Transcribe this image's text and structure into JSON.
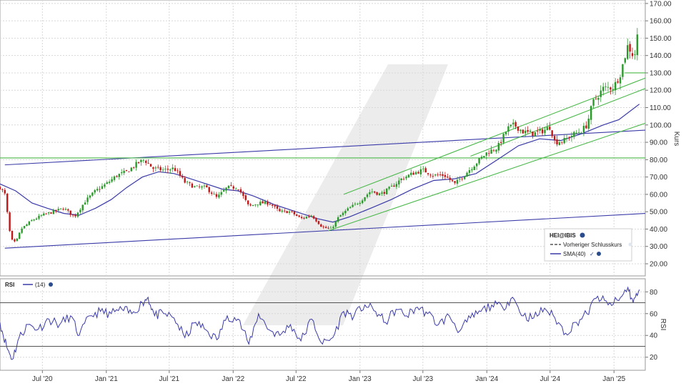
{
  "chart_data": [
    {
      "type": "candlestick",
      "instrument": "HEI@IBIS",
      "ylabel": "Kurs",
      "ylim": [
        13,
        172
      ],
      "y_ticks": [
        20,
        30,
        40,
        50,
        60,
        70,
        80,
        90,
        100,
        110,
        120,
        130,
        140,
        150,
        160,
        170
      ],
      "y_tick_labels": [
        "20.00",
        "30.00",
        "40.00",
        "50.00",
        "60.00",
        "70.00",
        "80.00",
        "90.00",
        "100.00",
        "110.00",
        "120.00",
        "130.00",
        "140.00",
        "150.00",
        "160.00",
        "170.00"
      ],
      "x_range": [
        "2020-03-01",
        "2025-04-01"
      ],
      "x_tick_dates": [
        "2020-07-01",
        "2021-01-01",
        "2021-07-01",
        "2022-01-01",
        "2022-07-01",
        "2023-01-01",
        "2023-07-01",
        "2024-01-01",
        "2024-07-01",
        "2025-01-01"
      ],
      "x_tick_labels": [
        "Jul '20",
        "Jan '21",
        "Jul '21",
        "Jan '22",
        "Jul '22",
        "Jan '23",
        "Jul '23",
        "Jan '24",
        "Jul '24",
        "Jan '25"
      ],
      "grid": true,
      "legend": {
        "placement": "bottom-right",
        "title": "HEI@IBIS",
        "items": [
          {
            "label": "Vorheriger Schlusskurs",
            "style": "dashed",
            "color": "#333333"
          },
          {
            "label": "SMA(40)",
            "style": "solid",
            "color": "#3a3aa8"
          }
        ]
      },
      "close_path": [
        [
          "2020-03-01",
          64
        ],
        [
          "2020-03-15",
          60
        ],
        [
          "2020-04-01",
          34
        ],
        [
          "2020-04-15",
          32
        ],
        [
          "2020-05-01",
          40
        ],
        [
          "2020-06-01",
          45
        ],
        [
          "2020-07-01",
          48
        ],
        [
          "2020-08-01",
          50
        ],
        [
          "2020-09-01",
          52
        ],
        [
          "2020-10-01",
          47
        ],
        [
          "2020-11-01",
          56
        ],
        [
          "2020-12-01",
          62
        ],
        [
          "2021-01-01",
          66
        ],
        [
          "2021-02-01",
          71
        ],
        [
          "2021-03-01",
          73
        ],
        [
          "2021-04-01",
          78
        ],
        [
          "2021-04-20",
          80
        ],
        [
          "2021-05-15",
          75
        ],
        [
          "2021-06-15",
          74
        ],
        [
          "2021-07-15",
          75
        ],
        [
          "2021-08-15",
          67
        ],
        [
          "2021-09-15",
          64
        ],
        [
          "2021-10-15",
          64
        ],
        [
          "2021-11-15",
          58
        ],
        [
          "2021-12-15",
          64
        ],
        [
          "2022-01-15",
          64
        ],
        [
          "2022-02-15",
          53
        ],
        [
          "2022-03-15",
          55
        ],
        [
          "2022-04-15",
          55
        ],
        [
          "2022-05-15",
          50
        ],
        [
          "2022-06-15",
          50
        ],
        [
          "2022-07-15",
          46
        ],
        [
          "2022-08-15",
          48
        ],
        [
          "2022-09-15",
          41
        ],
        [
          "2022-10-10",
          40
        ],
        [
          "2022-11-01",
          47
        ],
        [
          "2022-12-01",
          52
        ],
        [
          "2023-01-01",
          56
        ],
        [
          "2023-02-01",
          62
        ],
        [
          "2023-03-01",
          60
        ],
        [
          "2023-04-01",
          64
        ],
        [
          "2023-05-01",
          69
        ],
        [
          "2023-06-01",
          72
        ],
        [
          "2023-07-01",
          74
        ],
        [
          "2023-08-01",
          71
        ],
        [
          "2023-09-01",
          71
        ],
        [
          "2023-10-01",
          66
        ],
        [
          "2023-11-01",
          72
        ],
        [
          "2023-12-01",
          78
        ],
        [
          "2024-01-01",
          84
        ],
        [
          "2024-02-01",
          87
        ],
        [
          "2024-03-01",
          98
        ],
        [
          "2024-03-20",
          100
        ],
        [
          "2024-04-15",
          96
        ],
        [
          "2024-05-15",
          95
        ],
        [
          "2024-06-15",
          97
        ],
        [
          "2024-07-01",
          99
        ],
        [
          "2024-07-15",
          90
        ],
        [
          "2024-08-10",
          91
        ],
        [
          "2024-09-01",
          94
        ],
        [
          "2024-10-01",
          97
        ],
        [
          "2024-10-15",
          100
        ],
        [
          "2024-11-01",
          113
        ],
        [
          "2024-12-01",
          121
        ],
        [
          "2025-01-01",
          122
        ],
        [
          "2025-01-20",
          130
        ],
        [
          "2025-02-10",
          146
        ],
        [
          "2025-02-25",
          140
        ],
        [
          "2025-03-05",
          142
        ],
        [
          "2025-03-15",
          165
        ]
      ],
      "series": [
        {
          "name": "SMA(40)",
          "color": "#3a3aa8",
          "values": [
            [
              "2020-03-01",
              66
            ],
            [
              "2020-04-15",
              62
            ],
            [
              "2020-06-01",
              55
            ],
            [
              "2020-07-15",
              52
            ],
            [
              "2020-09-01",
              49
            ],
            [
              "2020-10-15",
              48
            ],
            [
              "2020-12-01",
              52
            ],
            [
              "2021-01-15",
              57
            ],
            [
              "2021-03-01",
              64
            ],
            [
              "2021-04-15",
              70
            ],
            [
              "2021-06-01",
              73
            ],
            [
              "2021-07-15",
              72
            ],
            [
              "2021-08-15",
              70
            ],
            [
              "2021-10-01",
              67
            ],
            [
              "2021-12-01",
              63
            ],
            [
              "2022-01-15",
              62
            ],
            [
              "2022-03-01",
              59
            ],
            [
              "2022-05-01",
              54
            ],
            [
              "2022-07-01",
              50
            ],
            [
              "2022-09-01",
              46
            ],
            [
              "2022-10-15",
              44
            ],
            [
              "2022-12-01",
              47
            ],
            [
              "2023-02-01",
              52
            ],
            [
              "2023-04-01",
              57
            ],
            [
              "2023-06-01",
              63
            ],
            [
              "2023-08-01",
              68
            ],
            [
              "2023-10-01",
              69
            ],
            [
              "2023-12-01",
              72
            ],
            [
              "2024-02-01",
              80
            ],
            [
              "2024-04-01",
              88
            ],
            [
              "2024-06-01",
              92
            ],
            [
              "2024-08-01",
              91
            ],
            [
              "2024-10-01",
              95
            ],
            [
              "2024-12-01",
              100
            ],
            [
              "2025-01-15",
              103
            ],
            [
              "2025-03-15",
              112
            ]
          ]
        }
      ],
      "trendlines": [
        {
          "color": "#3a3aa8",
          "from": [
            "2020-03-15",
            77
          ],
          "to": [
            "2025-04-01",
            97
          ]
        },
        {
          "color": "#3a3aa8",
          "from": [
            "2020-03-15",
            29
          ],
          "to": [
            "2025-04-01",
            49
          ]
        },
        {
          "color": "#4ab84a",
          "from": [
            "2020-03-01",
            81
          ],
          "to": [
            "2025-04-01",
            81
          ]
        },
        {
          "color": "#4ab84a",
          "from": [
            "2022-11-15",
            60
          ],
          "to": [
            "2025-04-01",
            127
          ]
        },
        {
          "color": "#4ab84a",
          "from": [
            "2022-10-01",
            39
          ],
          "to": [
            "2025-04-01",
            101
          ]
        },
        {
          "color": "#4ab84a",
          "from": [
            "2023-11-15",
            82
          ],
          "to": [
            "2025-04-01",
            121
          ]
        },
        {
          "color": "#4ab84a",
          "from": [
            "2025-02-01",
            130
          ],
          "to": [
            "2025-04-01",
            130
          ]
        }
      ]
    },
    {
      "type": "line",
      "title": "RSI",
      "series_label": "(14)",
      "ylabel": "RSI",
      "ylim": [
        8,
        92
      ],
      "y_ticks": [
        20,
        40,
        60,
        80
      ],
      "y_tick_labels": [
        "20",
        "40",
        "60",
        "80"
      ],
      "reference_lines": [
        30,
        70
      ],
      "x_range": [
        "2020-03-01",
        "2025-04-01"
      ],
      "series": [
        {
          "name": "RSI(14)",
          "color": "#3a3aa8",
          "values": [
            [
              "2020-03-01",
              52
            ],
            [
              "2020-03-20",
              30
            ],
            [
              "2020-04-05",
              18
            ],
            [
              "2020-04-25",
              38
            ],
            [
              "2020-05-20",
              50
            ],
            [
              "2020-06-20",
              46
            ],
            [
              "2020-07-20",
              55
            ],
            [
              "2020-08-20",
              50
            ],
            [
              "2020-09-20",
              58
            ],
            [
              "2020-10-15",
              40
            ],
            [
              "2020-11-15",
              58
            ],
            [
              "2020-12-15",
              62
            ],
            [
              "2021-01-15",
              60
            ],
            [
              "2021-02-15",
              64
            ],
            [
              "2021-03-15",
              60
            ],
            [
              "2021-04-15",
              70
            ],
            [
              "2021-05-01",
              75
            ],
            [
              "2021-05-20",
              58
            ],
            [
              "2021-06-15",
              60
            ],
            [
              "2021-07-15",
              56
            ],
            [
              "2021-08-15",
              38
            ],
            [
              "2021-09-15",
              52
            ],
            [
              "2021-10-15",
              45
            ],
            [
              "2021-11-15",
              36
            ],
            [
              "2021-12-15",
              58
            ],
            [
              "2022-01-15",
              55
            ],
            [
              "2022-02-15",
              32
            ],
            [
              "2022-03-15",
              60
            ],
            [
              "2022-04-15",
              45
            ],
            [
              "2022-05-15",
              40
            ],
            [
              "2022-06-15",
              50
            ],
            [
              "2022-07-15",
              35
            ],
            [
              "2022-08-15",
              55
            ],
            [
              "2022-09-15",
              32
            ],
            [
              "2022-10-15",
              38
            ],
            [
              "2022-11-15",
              62
            ],
            [
              "2022-12-15",
              58
            ],
            [
              "2023-01-15",
              68
            ],
            [
              "2023-02-15",
              62
            ],
            [
              "2023-03-15",
              52
            ],
            [
              "2023-04-15",
              64
            ],
            [
              "2023-05-15",
              58
            ],
            [
              "2023-06-15",
              66
            ],
            [
              "2023-07-15",
              60
            ],
            [
              "2023-08-15",
              50
            ],
            [
              "2023-09-15",
              58
            ],
            [
              "2023-10-15",
              44
            ],
            [
              "2023-11-15",
              56
            ],
            [
              "2023-12-15",
              62
            ],
            [
              "2024-01-15",
              68
            ],
            [
              "2024-02-15",
              66
            ],
            [
              "2024-03-15",
              75
            ],
            [
              "2024-04-15",
              58
            ],
            [
              "2024-05-15",
              56
            ],
            [
              "2024-06-15",
              65
            ],
            [
              "2024-07-15",
              56
            ],
            [
              "2024-08-15",
              42
            ],
            [
              "2024-09-15",
              52
            ],
            [
              "2024-10-15",
              60
            ],
            [
              "2024-11-15",
              76
            ],
            [
              "2024-12-15",
              68
            ],
            [
              "2025-01-15",
              72
            ],
            [
              "2025-02-10",
              84
            ],
            [
              "2025-02-25",
              70
            ],
            [
              "2025-03-15",
              82
            ]
          ]
        }
      ]
    }
  ]
}
